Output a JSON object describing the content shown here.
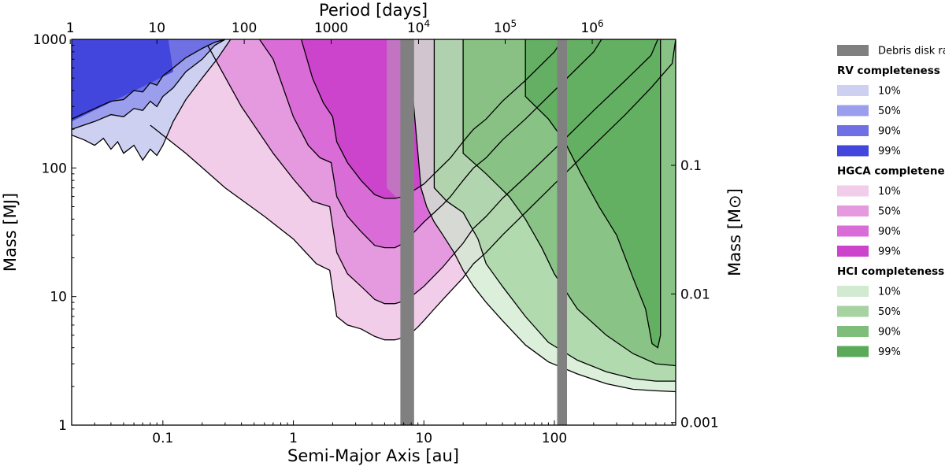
{
  "chart_data": {
    "type": "area",
    "xlabel": "Semi-Major Axis [au]",
    "ylabel": "Mass [M$_J$]",
    "ylabel_display": "Mass [MJ]",
    "ylabel_right": "Mass [M⊙]",
    "xlabel_top": "Period [days]",
    "xscale": "log",
    "yscale": "log",
    "xlim": [
      0.02,
      850
    ],
    "ylim": [
      1,
      1000
    ],
    "x_ticks": [
      {
        "value": 0.1,
        "label": "0.1"
      },
      {
        "value": 1,
        "label": "1"
      },
      {
        "value": 10,
        "label": "10"
      },
      {
        "value": 100,
        "label": "100"
      }
    ],
    "y_ticks": [
      {
        "value": 1,
        "label": "1"
      },
      {
        "value": 10,
        "label": "10"
      },
      {
        "value": 100,
        "label": "100"
      },
      {
        "value": 1000,
        "label": "1000"
      }
    ],
    "top_ticks": [
      {
        "a": 0.0195,
        "label": "1",
        "sup": ""
      },
      {
        "a": 0.09,
        "label": "10",
        "sup": ""
      },
      {
        "a": 0.42,
        "label": "100",
        "sup": ""
      },
      {
        "a": 1.95,
        "label": "1000",
        "sup": ""
      },
      {
        "a": 9.1,
        "label": "10",
        "sup": "4"
      },
      {
        "a": 42,
        "label": "10",
        "sup": "5"
      },
      {
        "a": 195,
        "label": "10",
        "sup": "6"
      }
    ],
    "right_ticks": [
      {
        "msun": 0.001,
        "label": "0.001"
      },
      {
        "msun": 0.01,
        "label": "0.01"
      },
      {
        "msun": 0.1,
        "label": "0.1"
      }
    ],
    "mj_per_msun": 1047.6,
    "debris_disk_radii": [
      [
        6.6,
        8.4
      ],
      [
        105,
        125
      ]
    ],
    "legend": {
      "placement": "right",
      "debris_label": "Debris disk radii",
      "groups": [
        {
          "title": "RV completeness",
          "entries": [
            {
              "label": "10%",
              "color": "#cdd0f0"
            },
            {
              "label": "50%",
              "color": "#9b9ded"
            },
            {
              "label": "90%",
              "color": "#6e70e3"
            },
            {
              "label": "99%",
              "color": "#4346dc"
            }
          ]
        },
        {
          "title": "HGCA completeness",
          "entries": [
            {
              "label": "10%",
              "color": "#f2cdea"
            },
            {
              "label": "50%",
              "color": "#e59ae0"
            },
            {
              "label": "90%",
              "color": "#d96cd6"
            },
            {
              "label": "99%",
              "color": "#cc44cc"
            }
          ]
        },
        {
          "title": "HCI completeness",
          "entries": [
            {
              "label": "10%",
              "color": "#d2ead1"
            },
            {
              "label": "50%",
              "color": "#a7d3a3"
            },
            {
              "label": "90%",
              "color": "#7ebd7a"
            },
            {
              "label": "99%",
              "color": "#5aaa5a"
            }
          ]
        }
      ]
    },
    "colors": {
      "debris": "#808080",
      "hgca_top": "#b07fd6"
    },
    "hgca_contours": [
      {
        "level": "10%",
        "points": [
          [
            0.08,
            215
          ],
          [
            0.15,
            130
          ],
          [
            0.3,
            70
          ],
          [
            0.6,
            42
          ],
          [
            1.0,
            28
          ],
          [
            1.5,
            18
          ],
          [
            1.9,
            16
          ],
          [
            2.15,
            7
          ],
          [
            2.6,
            6
          ],
          [
            3.3,
            5.6
          ],
          [
            4.2,
            4.9
          ],
          [
            5,
            4.6
          ],
          [
            6,
            4.6
          ],
          [
            7,
            4.8
          ],
          [
            8,
            5.2
          ],
          [
            9,
            5.8
          ],
          [
            10,
            6.5
          ],
          [
            12,
            8
          ],
          [
            14,
            9.5
          ],
          [
            16,
            11
          ],
          [
            18,
            12.5
          ],
          [
            20,
            14
          ],
          [
            22,
            16
          ],
          [
            24,
            18
          ],
          [
            30,
            22
          ],
          [
            40,
            30
          ],
          [
            60,
            45
          ],
          [
            100,
            75
          ],
          [
            200,
            150
          ],
          [
            350,
            260
          ],
          [
            550,
            420
          ],
          [
            800,
            650
          ],
          [
            850,
            1000
          ]
        ]
      },
      {
        "level": "50%",
        "points": [
          [
            0.22,
            900
          ],
          [
            0.4,
            300
          ],
          [
            0.7,
            130
          ],
          [
            1.0,
            82
          ],
          [
            1.4,
            55
          ],
          [
            1.9,
            50
          ],
          [
            2.15,
            22
          ],
          [
            2.6,
            15
          ],
          [
            3.3,
            12
          ],
          [
            4.2,
            9.5
          ],
          [
            5,
            8.8
          ],
          [
            6,
            8.8
          ],
          [
            7,
            9.2
          ],
          [
            8,
            10
          ],
          [
            9,
            11
          ],
          [
            10,
            12
          ],
          [
            12,
            14.5
          ],
          [
            14,
            17
          ],
          [
            16,
            20
          ],
          [
            18,
            23
          ],
          [
            20,
            26
          ],
          [
            22,
            30
          ],
          [
            24,
            34
          ],
          [
            30,
            42
          ],
          [
            40,
            58
          ],
          [
            60,
            85
          ],
          [
            100,
            140
          ],
          [
            200,
            280
          ],
          [
            350,
            480
          ],
          [
            550,
            750
          ],
          [
            620,
            1000
          ]
        ]
      },
      {
        "level": "90%",
        "points": [
          [
            0.55,
            1000
          ],
          [
            0.7,
            700
          ],
          [
            1.0,
            250
          ],
          [
            1.3,
            150
          ],
          [
            1.6,
            120
          ],
          [
            1.95,
            110
          ],
          [
            2.15,
            60
          ],
          [
            2.6,
            42
          ],
          [
            3.3,
            32
          ],
          [
            4.2,
            25
          ],
          [
            5,
            24
          ],
          [
            6,
            24
          ],
          [
            7,
            26
          ],
          [
            8,
            30
          ],
          [
            9,
            34
          ],
          [
            10,
            38
          ],
          [
            12,
            45
          ],
          [
            14,
            52
          ],
          [
            16,
            60
          ],
          [
            18,
            70
          ],
          [
            20,
            80
          ],
          [
            22,
            90
          ],
          [
            24,
            100
          ],
          [
            30,
            120
          ],
          [
            40,
            165
          ],
          [
            60,
            240
          ],
          [
            100,
            400
          ],
          [
            200,
            800
          ],
          [
            230,
            1000
          ]
        ]
      },
      {
        "level": "99%",
        "points": [
          [
            1.15,
            1000
          ],
          [
            1.4,
            500
          ],
          [
            1.7,
            320
          ],
          [
            2.0,
            250
          ],
          [
            2.15,
            160
          ],
          [
            2.6,
            110
          ],
          [
            3.3,
            80
          ],
          [
            4.2,
            62
          ],
          [
            5,
            58
          ],
          [
            6,
            58
          ],
          [
            7,
            60
          ],
          [
            8,
            65
          ],
          [
            9,
            70
          ],
          [
            10,
            75
          ],
          [
            12,
            90
          ],
          [
            14,
            105
          ],
          [
            16,
            120
          ],
          [
            18,
            140
          ],
          [
            20,
            160
          ],
          [
            22,
            180
          ],
          [
            24,
            200
          ],
          [
            30,
            240
          ],
          [
            40,
            330
          ],
          [
            60,
            480
          ],
          [
            100,
            800
          ],
          [
            115,
            1000
          ]
        ]
      }
    ],
    "hci_contours": [
      {
        "level": "10%",
        "points": [
          [
            8,
            1000
          ],
          [
            8,
            500
          ],
          [
            9.5,
            70
          ],
          [
            10.5,
            50
          ],
          [
            12,
            38
          ],
          [
            14,
            30
          ],
          [
            17,
            22
          ],
          [
            20,
            16
          ],
          [
            24,
            12
          ],
          [
            30,
            9
          ],
          [
            40,
            6.5
          ],
          [
            60,
            4.2
          ],
          [
            90,
            3.1
          ],
          [
            150,
            2.5
          ],
          [
            250,
            2.1
          ],
          [
            400,
            1.9
          ],
          [
            600,
            1.85
          ],
          [
            850,
            1.82
          ]
        ]
      },
      {
        "level": "50%",
        "points": [
          [
            12,
            1000
          ],
          [
            12,
            70
          ],
          [
            15,
            55
          ],
          [
            20,
            45
          ],
          [
            26,
            28
          ],
          [
            30,
            18
          ],
          [
            40,
            12
          ],
          [
            60,
            7
          ],
          [
            90,
            4.4
          ],
          [
            150,
            3.2
          ],
          [
            250,
            2.6
          ],
          [
            400,
            2.3
          ],
          [
            600,
            2.2
          ],
          [
            850,
            2.2
          ]
        ]
      },
      {
        "level": "90%",
        "points": [
          [
            20,
            1000
          ],
          [
            20,
            130
          ],
          [
            30,
            90
          ],
          [
            45,
            60
          ],
          [
            60,
            40
          ],
          [
            80,
            24
          ],
          [
            100,
            15
          ],
          [
            150,
            8
          ],
          [
            250,
            5
          ],
          [
            400,
            3.6
          ],
          [
            600,
            3
          ],
          [
            850,
            2.9
          ]
        ]
      },
      {
        "level": "99%",
        "points": [
          [
            60,
            1000
          ],
          [
            60,
            360
          ],
          [
            90,
            240
          ],
          [
            120,
            160
          ],
          [
            160,
            90
          ],
          [
            220,
            50
          ],
          [
            300,
            30
          ],
          [
            400,
            14
          ],
          [
            500,
            8
          ],
          [
            560,
            4.3
          ],
          [
            620,
            4.0
          ],
          [
            650,
            5
          ],
          [
            650,
            1000
          ]
        ]
      }
    ],
    "rv_contours": [
      {
        "level": "10%",
        "points": [
          [
            0.02,
            180
          ],
          [
            0.025,
            165
          ],
          [
            0.03,
            150
          ],
          [
            0.035,
            170
          ],
          [
            0.04,
            140
          ],
          [
            0.045,
            160
          ],
          [
            0.05,
            130
          ],
          [
            0.06,
            150
          ],
          [
            0.07,
            115
          ],
          [
            0.08,
            140
          ],
          [
            0.09,
            125
          ],
          [
            0.1,
            150
          ],
          [
            0.12,
            230
          ],
          [
            0.15,
            340
          ],
          [
            0.2,
            500
          ],
          [
            0.26,
            700
          ],
          [
            0.33,
            1000
          ]
        ]
      },
      {
        "level": "50%",
        "points": [
          [
            0.02,
            200
          ],
          [
            0.03,
            230
          ],
          [
            0.04,
            260
          ],
          [
            0.05,
            250
          ],
          [
            0.06,
            290
          ],
          [
            0.07,
            280
          ],
          [
            0.08,
            330
          ],
          [
            0.09,
            300
          ],
          [
            0.1,
            360
          ],
          [
            0.12,
            420
          ],
          [
            0.15,
            560
          ],
          [
            0.2,
            700
          ],
          [
            0.25,
            900
          ],
          [
            0.3,
            1000
          ]
        ]
      },
      {
        "level": "90%",
        "points": [
          [
            0.02,
            240
          ],
          [
            0.03,
            290
          ],
          [
            0.04,
            330
          ],
          [
            0.05,
            340
          ],
          [
            0.06,
            400
          ],
          [
            0.07,
            390
          ],
          [
            0.08,
            460
          ],
          [
            0.09,
            440
          ],
          [
            0.1,
            520
          ],
          [
            0.12,
            600
          ],
          [
            0.15,
            720
          ],
          [
            0.2,
            850
          ],
          [
            0.25,
            950
          ],
          [
            0.3,
            1000
          ]
        ]
      },
      {
        "level": "99%",
        "points": [
          [
            0.02,
            1000
          ],
          [
            0.03,
            1000
          ],
          [
            0.04,
            1000
          ],
          [
            0.05,
            1000
          ],
          [
            0.06,
            1000
          ],
          [
            0.07,
            1000
          ],
          [
            0.08,
            1000
          ],
          [
            0.09,
            1000
          ],
          [
            0.1,
            1000
          ],
          [
            0.12,
            1000
          ],
          [
            0.15,
            1000
          ],
          [
            0.2,
            1000
          ],
          [
            0.25,
            1000
          ],
          [
            0.3,
            1000
          ]
        ]
      }
    ]
  }
}
